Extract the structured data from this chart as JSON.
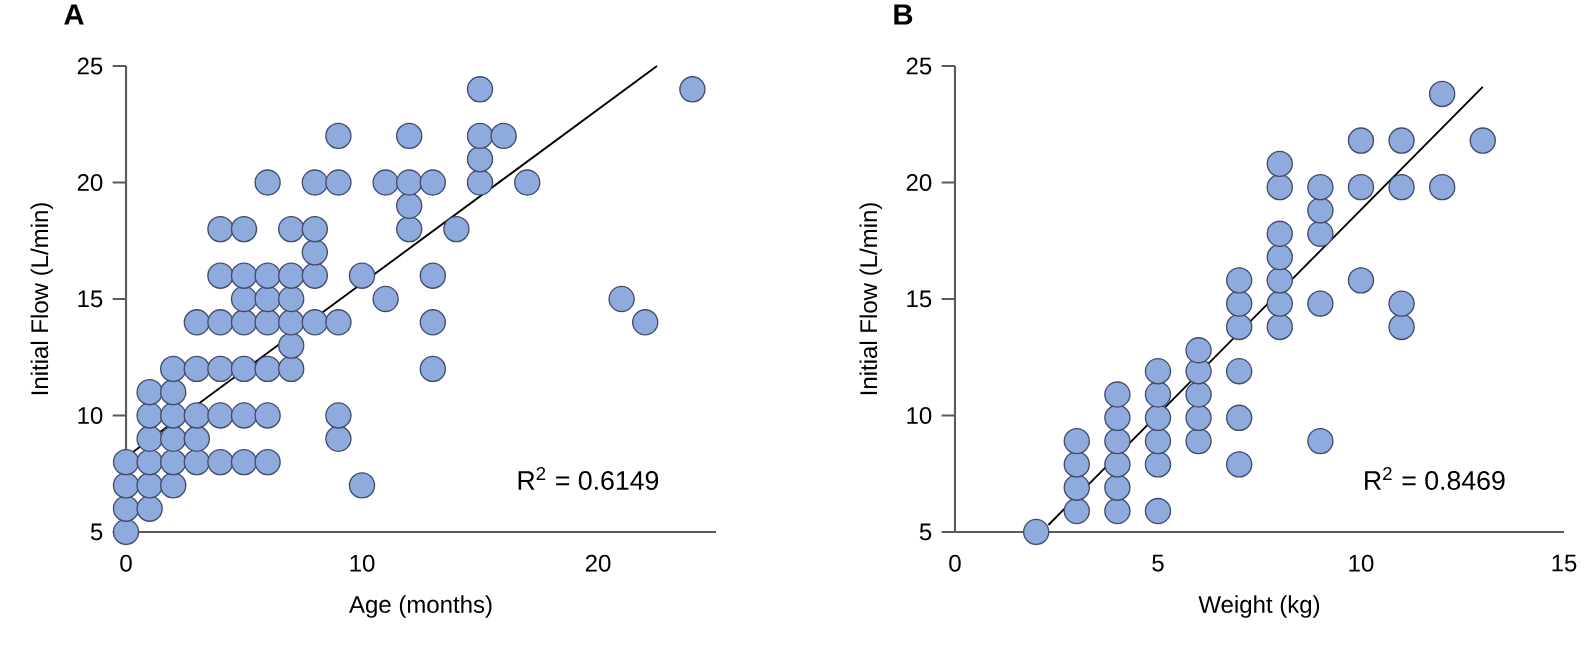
{
  "chart_data": [
    {
      "type": "scatter",
      "title": "A",
      "xlabel": "Age (months)",
      "ylabel": "Initial Flow (L/min)",
      "xlim": [
        0,
        25
      ],
      "ylim": [
        5,
        25
      ],
      "xticks": [
        0,
        10,
        20
      ],
      "yticks": [
        5,
        10,
        15,
        20,
        25
      ],
      "grid": false,
      "marker": "circle",
      "annotations": [
        "R$^{2}$ = 0.6149"
      ],
      "series": [
        {
          "color": "#8faadc",
          "x": [
            0,
            0,
            0,
            0,
            1,
            1,
            1,
            1,
            1,
            1,
            2,
            2,
            2,
            2,
            2,
            2,
            3,
            3,
            3,
            3,
            3,
            4,
            4,
            4,
            4,
            4,
            4,
            5,
            5,
            5,
            5,
            5,
            5,
            5,
            6,
            6,
            6,
            6,
            6,
            6,
            6,
            7,
            7,
            7,
            7,
            7,
            7,
            8,
            8,
            8,
            8,
            8,
            9,
            9,
            9,
            9,
            9,
            10,
            10,
            11,
            11,
            12,
            12,
            12,
            12,
            13,
            13,
            13,
            13,
            14,
            15,
            15,
            15,
            15,
            16,
            17,
            21,
            22,
            24
          ],
          "values": [
            5,
            6,
            7,
            8,
            6,
            7,
            8,
            9,
            10,
            11,
            7,
            8,
            9,
            10,
            11,
            12,
            8,
            9,
            10,
            12,
            14,
            8,
            10,
            12,
            14,
            16,
            18,
            8,
            10,
            12,
            14,
            15,
            16,
            18,
            8,
            10,
            12,
            14,
            15,
            16,
            20,
            12,
            13,
            14,
            15,
            16,
            18,
            14,
            16,
            17,
            18,
            20,
            9,
            10,
            14,
            20,
            22,
            7,
            16,
            15,
            20,
            18,
            19,
            20,
            22,
            12,
            14,
            16,
            20,
            18,
            20,
            21,
            22,
            24,
            22,
            20,
            15,
            14,
            24
          ]
        },
        {
          "type": "line",
          "color": "#000000",
          "marker": "none",
          "x": [
            0.25,
            22.5
          ],
          "values": [
            8.4,
            25
          ]
        }
      ]
    },
    {
      "type": "scatter",
      "title": "B",
      "xlabel": "Weight (kg)",
      "ylabel": "Initial Flow (L/min)",
      "xlim": [
        0,
        15
      ],
      "ylim": [
        5,
        25
      ],
      "xticks": [
        0,
        5,
        10,
        15
      ],
      "yticks": [
        5,
        10,
        15,
        20,
        25
      ],
      "grid": false,
      "marker": "circle",
      "annotations": [
        "R$^{2}$ = 0.8469"
      ],
      "series": [
        {
          "color": "#8faadc",
          "x": [
            2,
            3,
            3,
            3,
            3,
            4,
            4,
            4,
            4,
            4,
            4,
            5,
            5,
            5,
            5,
            5,
            5,
            6,
            6,
            6,
            6,
            6,
            7,
            7,
            7,
            7,
            7,
            7,
            8,
            8,
            8,
            8,
            8,
            8,
            8,
            9,
            9,
            9,
            9,
            9,
            10,
            10,
            10,
            11,
            11,
            11,
            11,
            12,
            12,
            13
          ],
          "values": [
            5,
            5.9,
            6.9,
            7.9,
            8.9,
            5.9,
            6.9,
            7.9,
            8.9,
            9.9,
            10.9,
            5.9,
            7.9,
            8.9,
            9.9,
            10.9,
            11.9,
            8.9,
            9.9,
            10.9,
            11.9,
            12.8,
            7.9,
            9.9,
            11.9,
            13.8,
            14.8,
            15.8,
            13.8,
            14.8,
            15.8,
            16.8,
            17.8,
            19.8,
            20.8,
            8.9,
            14.8,
            17.8,
            18.8,
            19.8,
            15.8,
            19.8,
            21.8,
            13.8,
            14.8,
            19.8,
            21.8,
            19.8,
            23.8,
            21.8
          ]
        },
        {
          "type": "line",
          "color": "#000000",
          "marker": "none",
          "x": [
            2.3,
            13.0
          ],
          "values": [
            5.3,
            24.1
          ]
        }
      ]
    }
  ]
}
